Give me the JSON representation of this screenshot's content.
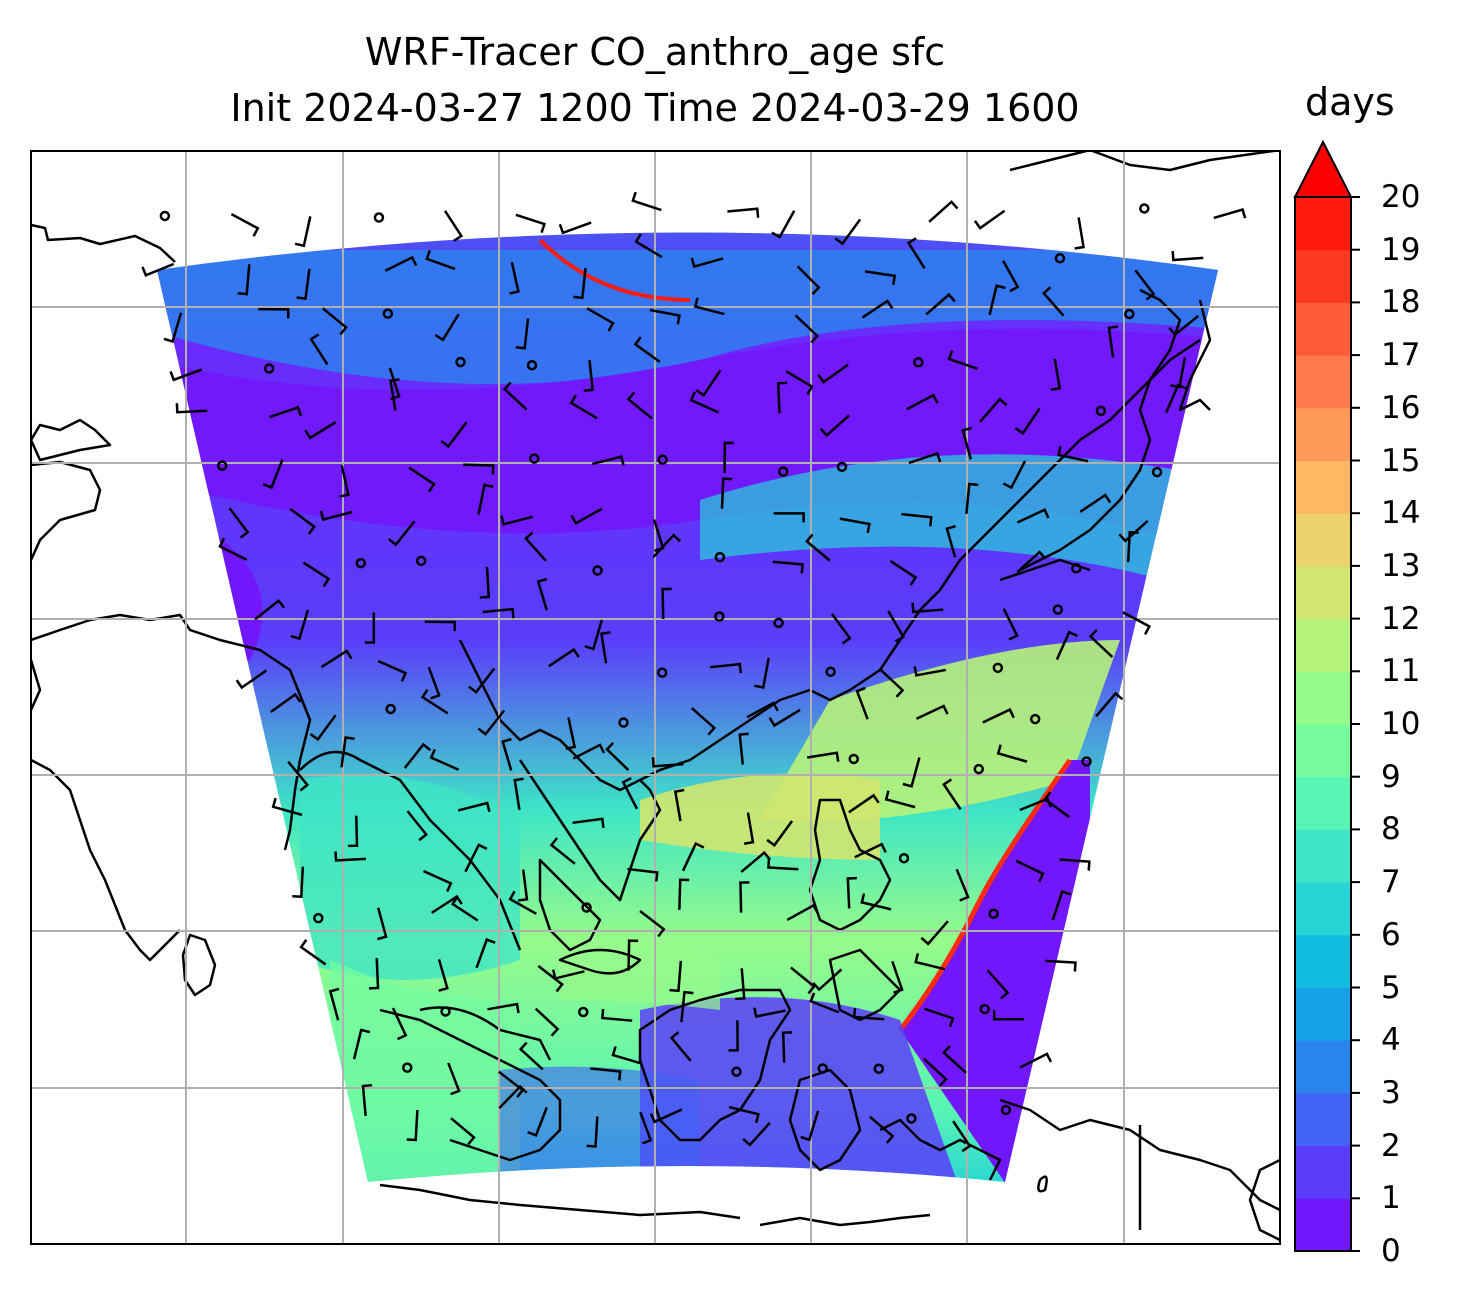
{
  "title": {
    "line1": "WRF-Tracer CO_anthro_age sfc",
    "line2": "Init 2024-03-27 1200 Time 2024-03-29 1600"
  },
  "colorbar": {
    "unit": "days",
    "min": 0,
    "max": 20,
    "step": 1,
    "extend": "max",
    "ticks": [
      "0",
      "1",
      "2",
      "3",
      "4",
      "5",
      "6",
      "7",
      "8",
      "9",
      "10",
      "11",
      "12",
      "13",
      "14",
      "15",
      "16",
      "17",
      "18",
      "19",
      "20"
    ],
    "colors": [
      "#7217fb",
      "#5a3dfa",
      "#4063f5",
      "#2a84ee",
      "#16a2e5",
      "#12bcdf",
      "#27d4d6",
      "#3ee5c6",
      "#58f4b3",
      "#76fb9f",
      "#97fb8a",
      "#b6f27a",
      "#d2e56f",
      "#ecd26a",
      "#fdb864",
      "#ff995a",
      "#ff7a4c",
      "#ff5a3a",
      "#ff3a24",
      "#ff1a0e"
    ],
    "over_color": "#ff0000"
  },
  "map": {
    "gridlines": true,
    "coastlines": true,
    "wind_barbs": true
  }
}
